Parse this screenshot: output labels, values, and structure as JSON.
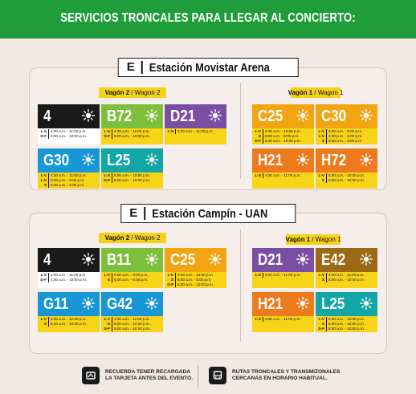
{
  "header": {
    "title": "SERVICIOS TRONCALES PARA LLEGAR AL CONCIERTO:"
  },
  "stations": [
    {
      "mark": "E",
      "name": "Estación Movistar  Arena",
      "left": {
        "wagon": {
          "bold": "Vagón 2",
          "rest": "/ Wagon 2"
        },
        "routes": [
          {
            "code": "4",
            "color": "#1a1a1a",
            "sched_bg": "#ffffff",
            "rows": [
              {
                "d": "L-S",
                "t": "4:00 a.m. - 11:00 p.m."
              },
              {
                "d": "D-F",
                "t": "4:00 a.m. - 10:00 p.m."
              }
            ]
          },
          {
            "code": "B72",
            "color": "#7cbf3b",
            "sched_bg": "#f7d418",
            "rows": [
              {
                "d": "L-S",
                "t": "4:30 a.m. - 11:00 p.m."
              },
              {
                "d": "D-F",
                "t": "5:00 a.m. - 10:00 p.m."
              }
            ]
          },
          {
            "code": "D21",
            "color": "#7a4fa3",
            "sched_bg": "#f7d418",
            "rows": [
              {
                "d": "L-S",
                "t": "4:00 a.m. - 11:00 p.m."
              }
            ]
          },
          {
            "code": "G30",
            "color": "#1797d6",
            "sched_bg": "#f7d418",
            "rows": [
              {
                "d": "L-V",
                "t": "4:30 a.m. - 11:00 p.m."
              },
              {
                "d": "L-V",
                "t": "3:00 p.m. - 8:00 p.m."
              },
              {
                "d": "S",
                "t": "5:00 a.m. - 3:00 p.m."
              }
            ]
          },
          {
            "code": "L25",
            "color": "#12a6a6",
            "sched_bg": "#f7d418",
            "rows": [
              {
                "d": "L-S",
                "t": "5:00 a.m. - 10:00 p.m."
              },
              {
                "d": "D-F",
                "t": "5:00 a.m. - 10:00 p.m."
              }
            ]
          }
        ]
      },
      "right": {
        "wagon": {
          "bold": "Vagón 1",
          "rest": "/ Wagon 1"
        },
        "routes": [
          {
            "code": "C25",
            "color": "#f2a511",
            "sched_bg": "#f7d418",
            "rows": [
              {
                "d": "L-V",
                "t": "4:30 a.m. - 10:00 p.m."
              },
              {
                "d": "S",
                "t": "5:00 a.m. - 8:00 p.m."
              },
              {
                "d": "D-F",
                "t": "5:30 a.m. - 10:00 p.m."
              }
            ]
          },
          {
            "code": "C30",
            "color": "#f2a511",
            "sched_bg": "#f7d418",
            "rows": [
              {
                "d": "L-V",
                "t": "5:00 a.m. - 9:00 p.m."
              },
              {
                "d": "L-V",
                "t": "4:00 p.m. - 8:00 p.m."
              },
              {
                "d": "S",
                "t": "5:00 a.m. - 3:00 p.m."
              }
            ]
          },
          {
            "code": "H21",
            "color": "#ed7a1c",
            "sched_bg": "#f7d418",
            "rows": [
              {
                "d": "L-S",
                "t": "4:30 a.m. - 11:00 p.m."
              }
            ]
          },
          {
            "code": "H72",
            "color": "#ed7a1c",
            "sched_bg": "#f7d418",
            "rows": [
              {
                "d": "L-V",
                "t": "5:30 a.m. - 10:00 p.m."
              },
              {
                "d": "S",
                "t": "5:00 a.m. - 10:00 p.m."
              }
            ]
          }
        ]
      }
    },
    {
      "mark": "E",
      "name": "Estación Campín - UAN",
      "left": {
        "wagon": {
          "bold": "Vagón 2",
          "rest": "/ Wagon 2"
        },
        "routes": [
          {
            "code": "4",
            "color": "#1a1a1a",
            "sched_bg": "#ffffff",
            "rows": [
              {
                "d": "L-S",
                "t": "4:00 a.m. - 11:00 p.m."
              },
              {
                "d": "D-F",
                "t": "4:00 a.m. - 10:00 p.m."
              }
            ]
          },
          {
            "code": "B11",
            "color": "#7cbf3b",
            "sched_bg": "#f7d418",
            "rows": [
              {
                "d": "L-V",
                "t": "5:00 a.m. - 9:00 p.m."
              },
              {
                "d": "S",
                "t": "6:00 a.m. - 9:30 p.m."
              }
            ]
          },
          {
            "code": "C25",
            "color": "#f2a511",
            "sched_bg": "#f7d418",
            "rows": [
              {
                "d": "L-V",
                "t": "4:30 a.m. - 10:00 p.m."
              },
              {
                "d": "S",
                "t": "5:00 a.m. - 8:00 p.m."
              },
              {
                "d": "D-F",
                "t": "5:30 a.m. - 10:00 p.m."
              }
            ]
          },
          {
            "code": "G11",
            "color": "#1797d6",
            "sched_bg": "#f7d418",
            "rows": [
              {
                "d": "L-V",
                "t": "6:00 a.m. - 11:00 p.m."
              },
              {
                "d": "S",
                "t": "6:30 a.m. - 10:00 p.m."
              }
            ]
          },
          {
            "code": "G42",
            "color": "#1797d6",
            "sched_bg": "#f7d418",
            "rows": [
              {
                "d": "L-V",
                "t": "4:30 a.m. - 11:00 p.m."
              },
              {
                "d": "S",
                "t": "5:00 a.m. - 10:00 p.m."
              },
              {
                "d": "D-F",
                "t": "5:00 a.m. - 10:00 p.m."
              }
            ]
          }
        ]
      },
      "right": {
        "wagon": {
          "bold": "Vagón 1",
          "rest": "/ Wagon 1"
        },
        "routes": [
          {
            "code": "D21",
            "color": "#7a4fa3",
            "sched_bg": "#f7d418",
            "rows": [
              {
                "d": "L-S",
                "t": "4:00 a.m. - 11:00 p.m."
              }
            ]
          },
          {
            "code": "E42",
            "color": "#9c6a16",
            "sched_bg": "#f7d418",
            "rows": [
              {
                "d": "L-V",
                "t": "4:00 a.m. - 11:00 p.m."
              },
              {
                "d": "S",
                "t": "5:00 a.m. - 10:00 p.m."
              }
            ]
          },
          {
            "code": "H21",
            "color": "#ed7a1c",
            "sched_bg": "#f7d418",
            "rows": [
              {
                "d": "L-S",
                "t": "4:30 a.m. - 11:00 p.m."
              }
            ]
          },
          {
            "code": "L25",
            "color": "#12a6a6",
            "sched_bg": "#f7d418",
            "rows": [
              {
                "d": "L-V",
                "t": "5:00 a.m. - 10:00 p.m."
              },
              {
                "d": "S",
                "t": "5:00 a.m. - 10:00 p.m."
              },
              {
                "d": "D-F",
                "t": "5:00 a.m. - 10:00 p.m."
              }
            ]
          }
        ]
      }
    }
  ],
  "footer": {
    "left": {
      "icon": "card-icon",
      "line1": "RECUERDA TENER RECARGADA",
      "line2": "LA TARJETA ANTES DEL EVENTO."
    },
    "right": {
      "icon": "bus-icon",
      "line1": "RUTAS TRONCALES Y TRANSMIZONALES",
      "line2": "CERCANAS EN HORARIO HABITUAL."
    }
  }
}
